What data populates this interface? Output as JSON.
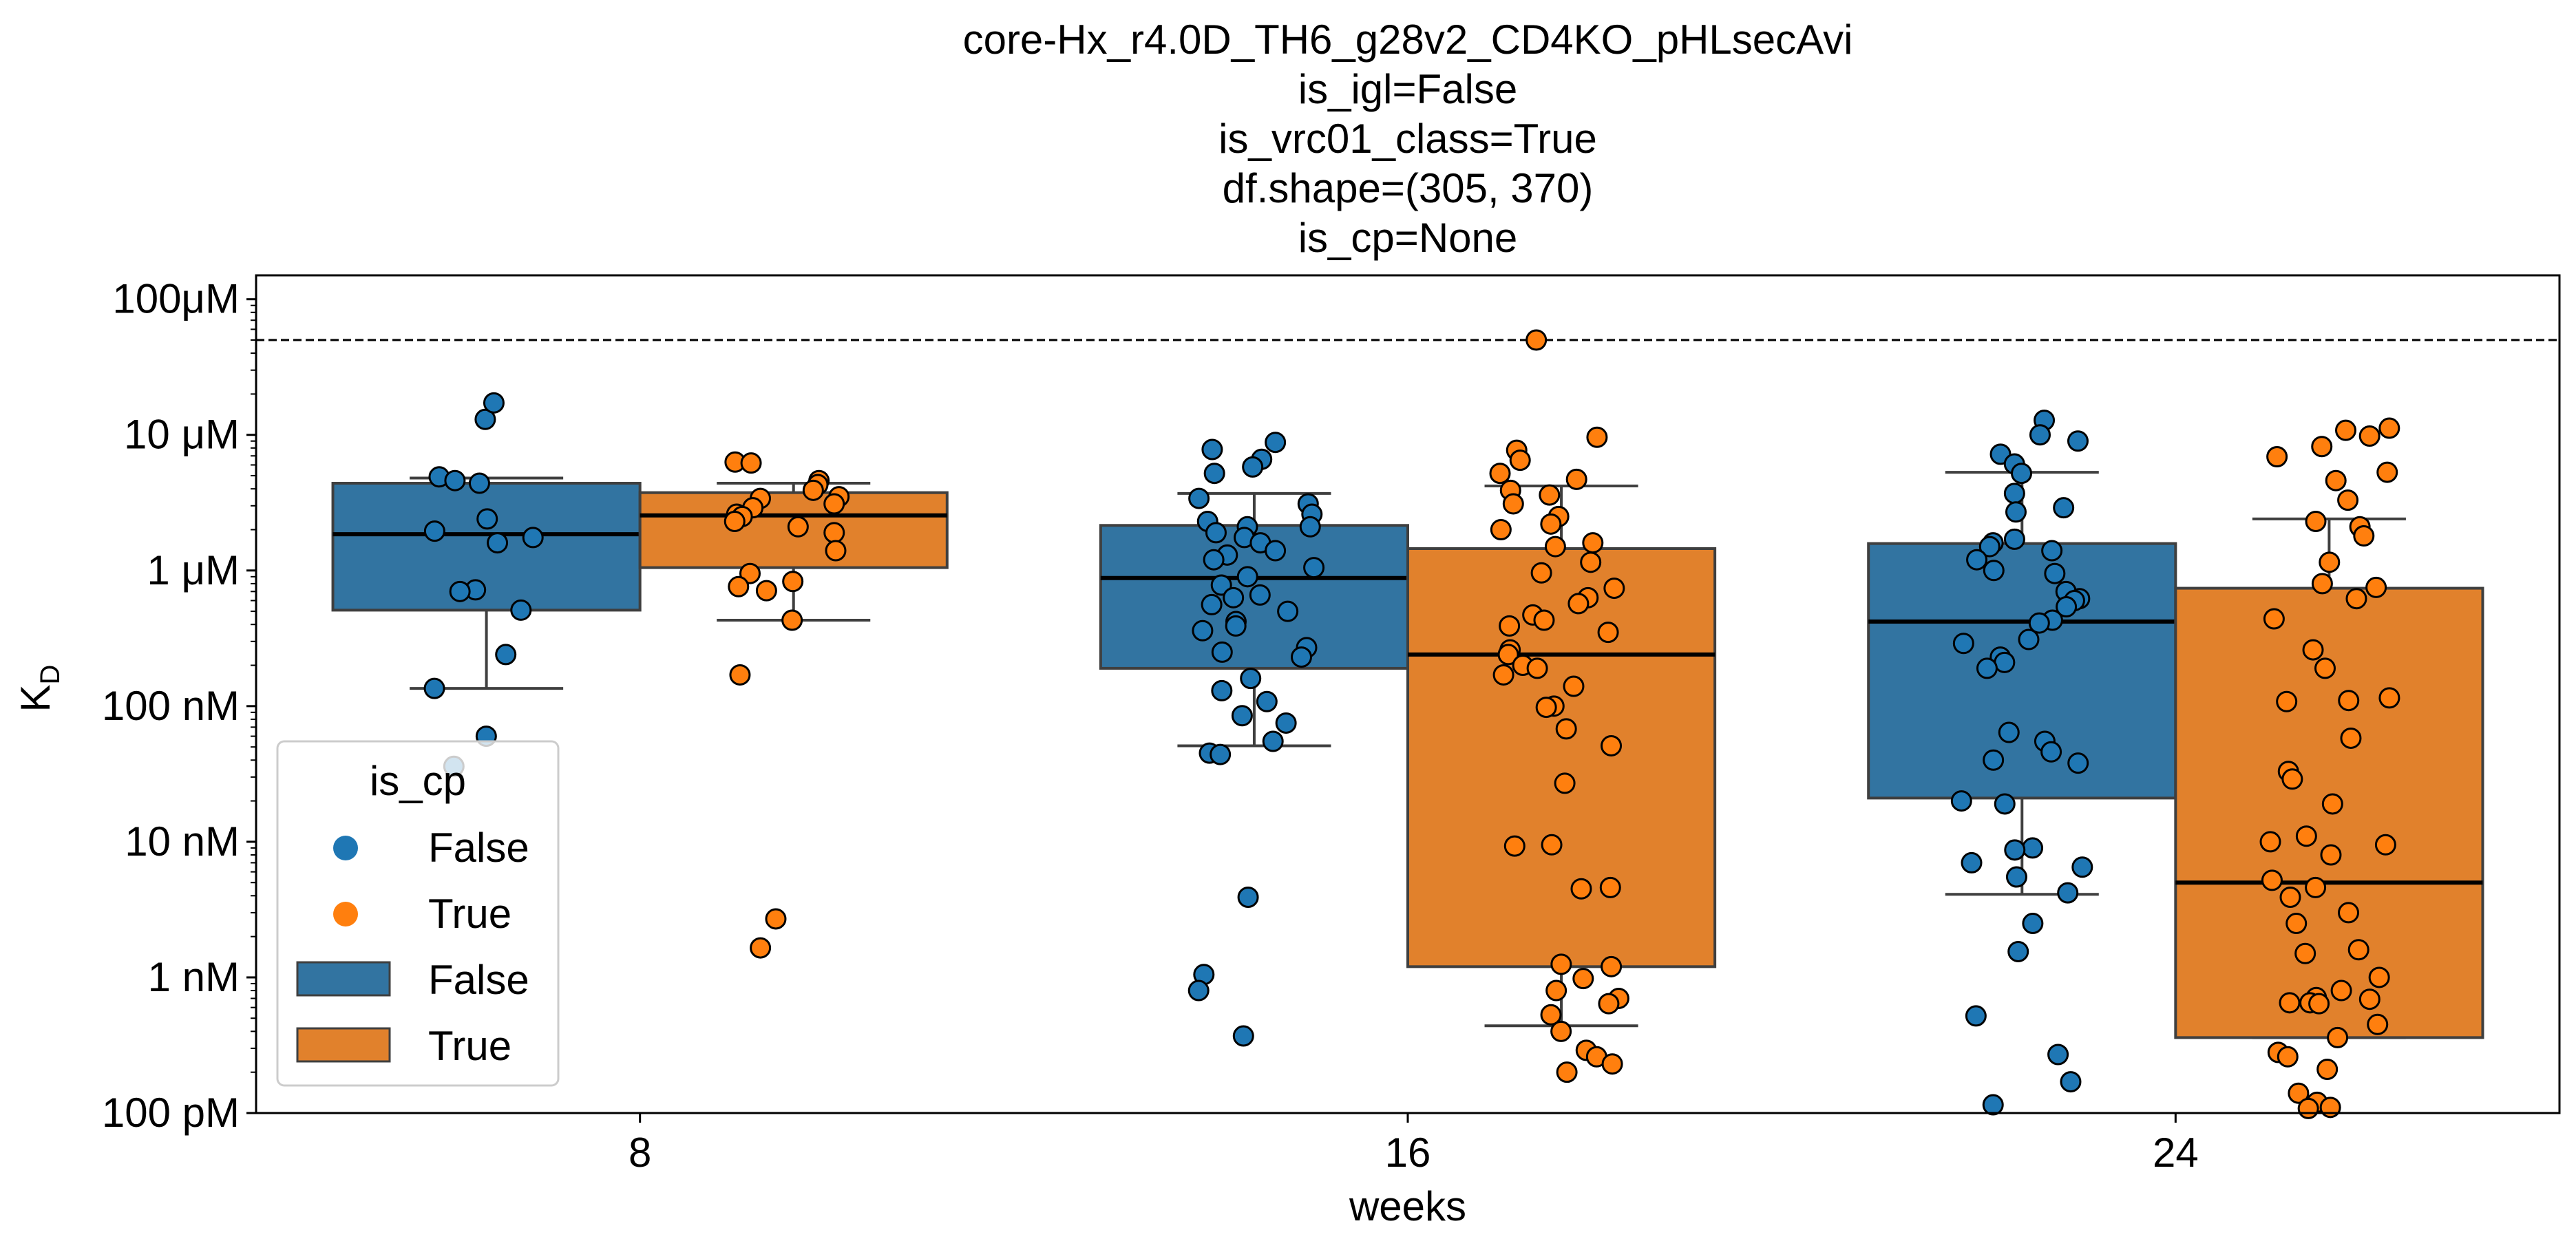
{
  "chart_data": {
    "type": "box",
    "title_lines": [
      "core-Hx_r4.0D_TH6_g28v2_CD4KO_pHLsecAvi",
      "is_igl=False",
      "is_vrc01_class=True",
      "df.shape=(305, 370)",
      "is_cp=None"
    ],
    "xlabel": "weeks",
    "ylabel": "K",
    "ylabel_sub": "D",
    "y_scale": "log",
    "y_unit": "M",
    "ylim": [
      1e-10,
      0.00015
    ],
    "y_ticks": [
      {
        "value": 1e-10,
        "label": "100 pM"
      },
      {
        "value": 1e-09,
        "label": "1 nM"
      },
      {
        "value": 1e-08,
        "label": "10 nM"
      },
      {
        "value": 1e-07,
        "label": "100 nM"
      },
      {
        "value": 1e-06,
        "label": "1 μM"
      },
      {
        "value": 1e-05,
        "label": "10 μM"
      },
      {
        "value": 0.0001,
        "label": "100μM"
      }
    ],
    "categories": [
      "8",
      "16",
      "24"
    ],
    "reference_line": 5e-05,
    "grid": false,
    "legend": {
      "title": "is_cp",
      "position": "lower-left",
      "point_entries": [
        "False",
        "True"
      ],
      "box_entries": [
        "False",
        "True"
      ]
    },
    "colors": {
      "False": "#3274a1",
      "True": "#e1812c",
      "False_point": "#1f77b4",
      "True_point": "#ff7f0e"
    },
    "series": [
      {
        "name": "False",
        "boxes": [
          {
            "category": "8",
            "whisker_low": 1.35e-07,
            "q1": 5.1e-07,
            "median": 1.85e-06,
            "q3": 4.4e-06,
            "whisker_high": 4.8e-06
          },
          {
            "category": "16",
            "whisker_low": 5.1e-08,
            "q1": 1.9e-07,
            "median": 8.8e-07,
            "q3": 2.15e-06,
            "whisker_high": 3.7e-06
          },
          {
            "category": "24",
            "whisker_low": 4.1e-09,
            "q1": 2.1e-08,
            "median": 4.2e-07,
            "q3": 1.58e-06,
            "whisker_high": 5.3e-06
          }
        ],
        "points": [
          {
            "category": "8",
            "y": [
              1.3e-05,
              1.72e-05,
              4.9e-06,
              4.6e-06,
              4.4e-06,
              2.4e-06,
              1.95e-06,
              1.75e-06,
              1.6e-06,
              7.2e-07,
              7e-07,
              5.1e-07,
              2.4e-07,
              1.35e-07,
              6e-08,
              3.6e-08
            ]
          },
          {
            "category": "16",
            "y": [
              8.8e-06,
              7.8e-06,
              6.6e-06,
              5.8e-06,
              5.2e-06,
              3.4e-06,
              3.1e-06,
              2.6e-06,
              2.3e-06,
              2.1e-06,
              2.1e-06,
              1.9e-06,
              1.75e-06,
              1.6e-06,
              1.4e-06,
              1.3e-06,
              1.2e-06,
              1.05e-06,
              9e-07,
              7.8e-07,
              6.6e-07,
              6.3e-07,
              5.6e-07,
              5e-07,
              4.2e-07,
              3.9e-07,
              3.6e-07,
              2.7e-07,
              2.5e-07,
              2.3e-07,
              1.6e-07,
              1.3e-07,
              1.08e-07,
              8.5e-08,
              7.5e-08,
              5.5e-08,
              4.5e-08,
              4.4e-08,
              3.9e-09,
              1.05e-09,
              8e-10,
              3.7e-10
            ]
          },
          {
            "category": "24",
            "y": [
              1.28e-05,
              1e-05,
              9e-06,
              7.2e-06,
              6.1e-06,
              5.2e-06,
              3.7e-06,
              2.9e-06,
              2.7e-06,
              1.7e-06,
              1.6e-06,
              1.5e-06,
              1.4e-06,
              1.2e-06,
              1e-06,
              9.5e-07,
              7e-07,
              6.2e-07,
              6e-07,
              5.4e-07,
              4.3e-07,
              4.1e-07,
              3.1e-07,
              2.9e-07,
              2.3e-07,
              2.1e-07,
              1.9e-07,
              6.4e-08,
              5.5e-08,
              4.6e-08,
              4e-08,
              3.8e-08,
              2e-08,
              1.9e-08,
              9e-09,
              8.7e-09,
              7e-09,
              6.5e-09,
              5.5e-09,
              4.2e-09,
              2.5e-09,
              1.55e-09,
              5.2e-10,
              2.7e-10,
              1.7e-10,
              1.15e-10
            ]
          }
        ]
      },
      {
        "name": "True",
        "boxes": [
          {
            "category": "8",
            "whisker_low": 4.3e-07,
            "q1": 1.05e-06,
            "median": 2.55e-06,
            "q3": 3.75e-06,
            "whisker_high": 4.4e-06
          },
          {
            "category": "16",
            "whisker_low": 4.4e-10,
            "q1": 1.2e-09,
            "median": 2.4e-07,
            "q3": 1.45e-06,
            "whisker_high": 4.2e-06
          },
          {
            "category": "24",
            "whisker_low": 3.6e-10,
            "q1": 3.6e-10,
            "median": 5e-09,
            "q3": 7.4e-07,
            "whisker_high": 2.4e-06
          }
        ],
        "points": [
          {
            "category": "8",
            "y": [
              6.3e-06,
              6.2e-06,
              4.6e-06,
              4.3e-06,
              3.9e-06,
              3.5e-06,
              3.4e-06,
              3.1e-06,
              2.9e-06,
              2.6e-06,
              2.5e-06,
              2.3e-06,
              2.1e-06,
              1.9e-06,
              1.4e-06,
              9.5e-07,
              8.3e-07,
              7.6e-07,
              7.1e-07,
              4.3e-07,
              1.7e-07,
              2.7e-09,
              1.65e-09
            ]
          },
          {
            "category": "16",
            "y": [
              5e-05,
              9.6e-06,
              7.7e-06,
              6.5e-06,
              5.2e-06,
              4.7e-06,
              3.9e-06,
              3.6e-06,
              3.1e-06,
              2.5e-06,
              2.2e-06,
              2e-06,
              1.6e-06,
              1.5e-06,
              1.15e-06,
              9.6e-07,
              7.4e-07,
              6.3e-07,
              5.7e-07,
              4.7e-07,
              4.3e-07,
              3.9e-07,
              3.5e-07,
              2.6e-07,
              2.4e-07,
              2e-07,
              1.9e-07,
              1.7e-07,
              1.4e-07,
              1e-07,
              9.8e-08,
              6.8e-08,
              5.1e-08,
              2.7e-08,
              9.5e-09,
              9.3e-09,
              4.6e-09,
              4.5e-09,
              1.25e-09,
              1.2e-09,
              9.8e-10,
              8e-10,
              7e-10,
              6.4e-10,
              5.3e-10,
              4e-10,
              2.9e-10,
              2.6e-10,
              2.3e-10,
              2e-10
            ]
          },
          {
            "category": "24",
            "y": [
              1.12e-05,
              1.08e-05,
              9.8e-06,
              8.2e-06,
              6.9e-06,
              5.3e-06,
              4.6e-06,
              3.3e-06,
              2.3e-06,
              2.1e-06,
              1.8e-06,
              1.15e-06,
              8e-07,
              7.5e-07,
              6.2e-07,
              4.4e-07,
              2.6e-07,
              1.9e-07,
              1.15e-07,
              1.1e-07,
              1.08e-07,
              5.8e-08,
              3.3e-08,
              2.9e-08,
              1.9e-08,
              1.1e-08,
              1e-08,
              9.5e-09,
              8e-09,
              5.2e-09,
              4.6e-09,
              3.9e-09,
              3e-09,
              2.5e-09,
              1.6e-09,
              1.5e-09,
              1e-09,
              8e-10,
              7.1e-10,
              6.9e-10,
              6.5e-10,
              6.5e-10,
              6.4e-10,
              4.5e-10,
              3.6e-10,
              2.8e-10,
              2.6e-10,
              2.1e-10,
              1.4e-10,
              1.2e-10,
              1.1e-10,
              1.08e-10
            ]
          }
        ]
      }
    ]
  }
}
